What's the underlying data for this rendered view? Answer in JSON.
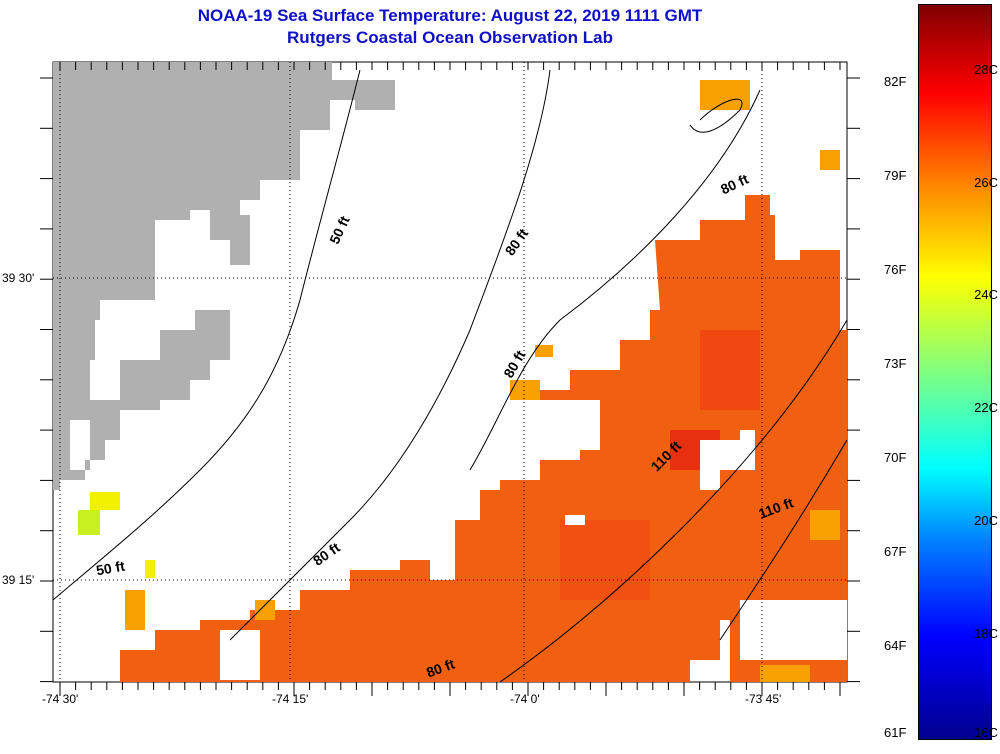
{
  "title": {
    "line1": "NOAA-19 Sea Surface Temperature:  August 22, 2019 1111 GMT",
    "line2": "Rutgers Coastal Ocean Observation Lab"
  },
  "axes": {
    "x_ticks": [
      "-74 30'",
      "-74 15'",
      "-74 0'",
      "-73 45'"
    ],
    "y_ticks": [
      "39 30'",
      "39 15'"
    ]
  },
  "contour_labels": [
    "50 ft",
    "50 ft",
    "80 ft",
    "80 ft",
    "80 ft",
    "80 ft",
    "80 ft",
    "110 ft",
    "110 ft"
  ],
  "colorbar": {
    "f_labels": [
      "82F",
      "79F",
      "76F",
      "73F",
      "70F",
      "67F",
      "64F",
      "61F"
    ],
    "c_labels": [
      "28C",
      "26C",
      "24C",
      "22C",
      "20C",
      "18C",
      "16C"
    ],
    "colormap": "jet",
    "range_f": [
      61,
      84.5
    ]
  },
  "colors": {
    "title": "#1010c8",
    "land": "#b0b0b0",
    "sst_warm": "#f06010"
  }
}
